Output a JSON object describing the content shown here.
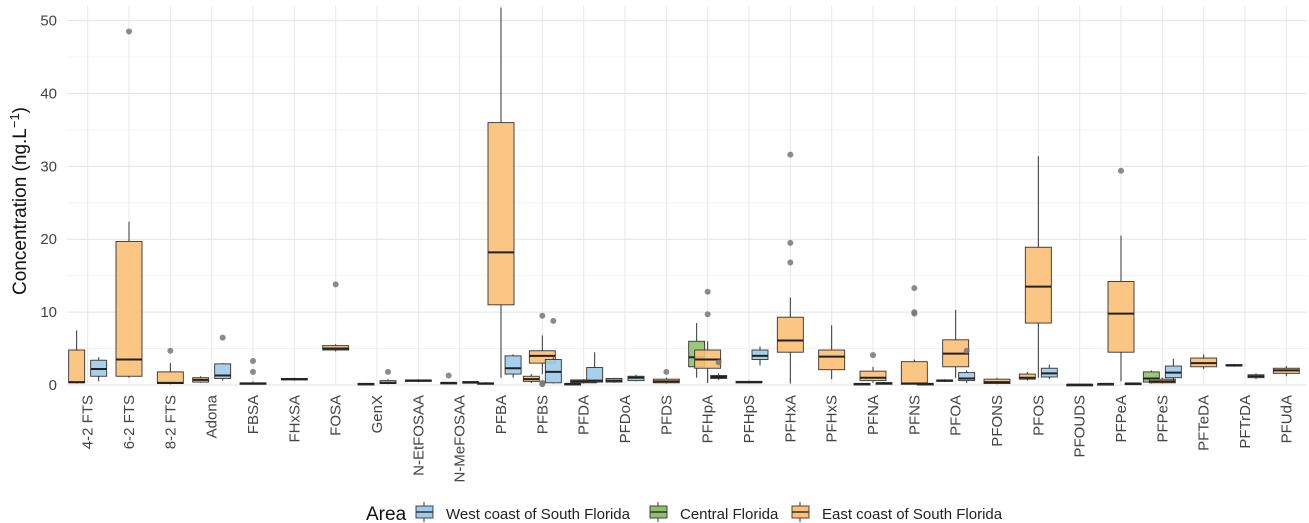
{
  "chart_data": {
    "type": "boxplot",
    "ylabel_main": "Concentration (ng.L",
    "ylabel_sup": "−1",
    "ylabel_close": ")",
    "ylim": [
      0,
      52
    ],
    "yticks": [
      0,
      10,
      20,
      30,
      40,
      50
    ],
    "grid": true,
    "legend_title": "Area",
    "legend_position": "bottom",
    "series": [
      {
        "name": "West coast of South Florida",
        "color": "#9ecae9"
      },
      {
        "name": "Central Florida",
        "color": "#8fc16a"
      },
      {
        "name": "East coast of South Florida",
        "color": "#fbbf75"
      }
    ],
    "categories": [
      "4-2 FTS",
      "6-2 FTS",
      "8-2 FTS",
      "Adona",
      "FBSA",
      "FHxSA",
      "FOSA",
      "GenX",
      "N-EtFOSAA",
      "N-MeFOSAA",
      "PFBA",
      "PFBS",
      "PFDA",
      "PFDoA",
      "PFDS",
      "PFHpA",
      "PFHpS",
      "PFHxA",
      "PFHxS",
      "PFNA",
      "PFNS",
      "PFOA",
      "PFONS",
      "PFOS",
      "PFOUDS",
      "PFPeA",
      "PFPeS",
      "PFTeDA",
      "PFTrDA",
      "PFUdA"
    ],
    "boxes": [
      {
        "cat": 0,
        "series": 2,
        "slot": -1,
        "min": 0.2,
        "q1": 0.3,
        "med": 0.4,
        "q3": 4.8,
        "max": 7.5,
        "out": []
      },
      {
        "cat": 0,
        "series": 0,
        "slot": 1,
        "min": 0.5,
        "q1": 1.2,
        "med": 2.2,
        "q3": 3.4,
        "max": 3.8,
        "out": []
      },
      {
        "cat": 1,
        "series": 2,
        "slot": 0,
        "min": 1.0,
        "q1": 1.2,
        "med": 3.5,
        "q3": 19.7,
        "max": 22.4,
        "out": [
          48.5
        ]
      },
      {
        "cat": 2,
        "series": 2,
        "slot": 0,
        "min": 0.1,
        "q1": 0.2,
        "med": 0.3,
        "q3": 1.8,
        "max": 3.0,
        "out": [
          4.7
        ]
      },
      {
        "cat": 3,
        "series": 2,
        "slot": -1,
        "min": 0.3,
        "q1": 0.4,
        "med": 0.7,
        "q3": 1.0,
        "max": 1.2,
        "out": []
      },
      {
        "cat": 3,
        "series": 0,
        "slot": 1,
        "min": 0.6,
        "q1": 0.9,
        "med": 1.3,
        "q3": 2.9,
        "max": 3.0,
        "out": [
          6.5
        ]
      },
      {
        "cat": 4,
        "series": 2,
        "slot": 0,
        "min": 0.05,
        "q1": 0.1,
        "med": 0.2,
        "q3": 0.3,
        "max": 0.5,
        "out": [
          1.8,
          3.3
        ]
      },
      {
        "cat": 5,
        "series": 2,
        "slot": 0,
        "min": 0.6,
        "q1": 0.7,
        "med": 0.8,
        "q3": 0.9,
        "max": 1.0,
        "out": []
      },
      {
        "cat": 6,
        "series": 2,
        "slot": 0,
        "min": 4.6,
        "q1": 4.8,
        "med": 5.0,
        "q3": 5.4,
        "max": 5.6,
        "out": [
          13.8
        ]
      },
      {
        "cat": 7,
        "series": 2,
        "slot": -1,
        "min": 0.05,
        "q1": 0.1,
        "med": 0.15,
        "q3": 0.2,
        "max": 0.3,
        "out": []
      },
      {
        "cat": 7,
        "series": 0,
        "slot": 1,
        "min": 0.1,
        "q1": 0.2,
        "med": 0.3,
        "q3": 0.6,
        "max": 0.8,
        "out": [
          1.8
        ]
      },
      {
        "cat": 8,
        "series": 2,
        "slot": 0,
        "min": 0.4,
        "q1": 0.5,
        "med": 0.6,
        "q3": 0.7,
        "max": 0.8,
        "out": []
      },
      {
        "cat": 9,
        "series": 2,
        "slot": -1,
        "min": 0.2,
        "q1": 0.25,
        "med": 0.3,
        "q3": 0.35,
        "max": 0.4,
        "out": [
          1.3
        ]
      },
      {
        "cat": 9,
        "series": 0,
        "slot": 1,
        "min": 0.3,
        "q1": 0.35,
        "med": 0.4,
        "q3": 0.45,
        "max": 0.5,
        "out": []
      },
      {
        "cat": 10,
        "series": 2,
        "slot": -1.4,
        "min": 0.1,
        "q1": 0.15,
        "med": 0.2,
        "q3": 0.3,
        "max": 0.4,
        "out": []
      },
      {
        "cat": 10,
        "series": 2,
        "slot": 0,
        "min": 1.0,
        "q1": 11.0,
        "med": 18.2,
        "q3": 36.0,
        "max": 51.8,
        "out": []
      },
      {
        "cat": 10,
        "series": 0,
        "slot": 1.1,
        "min": 1.0,
        "q1": 1.5,
        "med": 2.3,
        "q3": 4.0,
        "max": 4.2,
        "out": []
      },
      {
        "cat": 11,
        "series": 2,
        "slot": -1,
        "min": 0.3,
        "q1": 0.5,
        "med": 0.8,
        "q3": 1.2,
        "max": 1.5,
        "out": []
      },
      {
        "cat": 11,
        "series": 2,
        "slot": 0,
        "min": 1.5,
        "q1": 3.0,
        "med": 4.0,
        "q3": 4.7,
        "max": 6.8,
        "out": [
          9.5,
          0.3,
          0.1
        ]
      },
      {
        "cat": 11,
        "series": 0,
        "slot": 1,
        "min": 0.2,
        "q1": 0.3,
        "med": 1.8,
        "q3": 3.5,
        "max": 3.8,
        "out": [
          8.8
        ]
      },
      {
        "cat": 12,
        "series": 2,
        "slot": -1,
        "min": 0.05,
        "q1": 0.1,
        "med": 0.15,
        "q3": 0.2,
        "max": 0.3,
        "out": []
      },
      {
        "cat": 12,
        "series": 2,
        "slot": 0,
        "min": 0.2,
        "q1": 0.3,
        "med": 0.5,
        "q3": 0.7,
        "max": 0.8,
        "out": []
      },
      {
        "cat": 12,
        "series": 0,
        "slot": 1,
        "min": 0.3,
        "q1": 0.4,
        "med": 0.6,
        "q3": 2.4,
        "max": 4.5,
        "out": []
      },
      {
        "cat": 13,
        "series": 2,
        "slot": -1,
        "min": 0.3,
        "q1": 0.4,
        "med": 0.6,
        "q3": 0.9,
        "max": 1.0,
        "out": []
      },
      {
        "cat": 13,
        "series": 0,
        "slot": 1,
        "min": 0.5,
        "q1": 0.6,
        "med": 1.0,
        "q3": 1.2,
        "max": 1.4,
        "out": []
      },
      {
        "cat": 14,
        "series": 2,
        "slot": 0,
        "min": 0.2,
        "q1": 0.3,
        "med": 0.5,
        "q3": 0.8,
        "max": 1.0,
        "out": [
          1.8
        ]
      },
      {
        "cat": 15,
        "series": 1,
        "slot": -1,
        "min": 1.0,
        "q1": 2.5,
        "med": 3.8,
        "q3": 6.0,
        "max": 8.5,
        "out": []
      },
      {
        "cat": 15,
        "series": 2,
        "slot": 0,
        "min": 0.3,
        "q1": 2.3,
        "med": 3.5,
        "q3": 4.8,
        "max": 6.0,
        "out": [
          12.8,
          9.7
        ]
      },
      {
        "cat": 15,
        "series": 0,
        "slot": 1,
        "min": 0.7,
        "q1": 0.9,
        "med": 1.1,
        "q3": 1.3,
        "max": 1.6,
        "out": [
          3.1
        ]
      },
      {
        "cat": 16,
        "series": 2,
        "slot": 0,
        "min": 0.2,
        "q1": 0.3,
        "med": 0.4,
        "q3": 0.5,
        "max": 0.6,
        "out": []
      },
      {
        "cat": 16,
        "series": 0,
        "slot": 1,
        "min": 2.7,
        "q1": 3.5,
        "med": 4.0,
        "q3": 4.8,
        "max": 5.3,
        "out": []
      },
      {
        "cat": 17,
        "series": 2,
        "slot": 0,
        "min": 0.2,
        "q1": 4.5,
        "med": 6.1,
        "q3": 9.3,
        "max": 12.0,
        "out": [
          31.6,
          19.5,
          16.8
        ]
      },
      {
        "cat": 18,
        "series": 2,
        "slot": 0,
        "min": 0.8,
        "q1": 2.1,
        "med": 3.9,
        "q3": 4.8,
        "max": 8.2,
        "out": []
      },
      {
        "cat": 19,
        "series": 2,
        "slot": -1,
        "min": 0.05,
        "q1": 0.1,
        "med": 0.15,
        "q3": 0.2,
        "max": 0.3,
        "out": []
      },
      {
        "cat": 19,
        "series": 2,
        "slot": 0,
        "min": 0.3,
        "q1": 0.6,
        "med": 1.0,
        "q3": 1.9,
        "max": 2.5,
        "out": [
          4.1
        ]
      },
      {
        "cat": 19,
        "series": 0,
        "slot": 1,
        "min": 0.1,
        "q1": 0.2,
        "med": 0.25,
        "q3": 0.3,
        "max": 0.4,
        "out": []
      },
      {
        "cat": 20,
        "series": 2,
        "slot": 0,
        "min": 0.05,
        "q1": 0.1,
        "med": 0.2,
        "q3": 3.2,
        "max": 3.5,
        "out": [
          13.3,
          9.8,
          10.0
        ]
      },
      {
        "cat": 20,
        "series": 0,
        "slot": 1,
        "min": 0.05,
        "q1": 0.1,
        "med": 0.15,
        "q3": 0.2,
        "max": 0.3,
        "out": []
      },
      {
        "cat": 21,
        "series": 2,
        "slot": -1,
        "min": 0.4,
        "q1": 0.5,
        "med": 0.6,
        "q3": 0.7,
        "max": 0.8,
        "out": []
      },
      {
        "cat": 21,
        "series": 2,
        "slot": 0,
        "min": 1.0,
        "q1": 2.5,
        "med": 4.3,
        "q3": 6.2,
        "max": 10.3,
        "out": []
      },
      {
        "cat": 21,
        "series": 0,
        "slot": 1,
        "min": 0.3,
        "q1": 0.6,
        "med": 0.9,
        "q3": 1.7,
        "max": 2.0,
        "out": [
          4.7
        ]
      },
      {
        "cat": 22,
        "series": 2,
        "slot": 0,
        "min": 0.1,
        "q1": 0.2,
        "med": 0.4,
        "q3": 0.8,
        "max": 1.0,
        "out": []
      },
      {
        "cat": 23,
        "series": 2,
        "slot": -1,
        "min": 0.6,
        "q1": 0.8,
        "med": 1.0,
        "q3": 1.5,
        "max": 1.8,
        "out": []
      },
      {
        "cat": 23,
        "series": 2,
        "slot": 0,
        "min": 1.0,
        "q1": 8.5,
        "med": 13.5,
        "q3": 18.9,
        "max": 31.4,
        "out": []
      },
      {
        "cat": 23,
        "series": 0,
        "slot": 1,
        "min": 0.8,
        "q1": 1.1,
        "med": 1.6,
        "q3": 2.3,
        "max": 2.8,
        "out": []
      },
      {
        "cat": 24,
        "series": 2,
        "slot": 0,
        "min": 0.0,
        "q1": 0.02,
        "med": 0.05,
        "q3": 0.08,
        "max": 0.1,
        "out": []
      },
      {
        "cat": 25,
        "series": 2,
        "slot": -1.4,
        "min": 0.1,
        "q1": 0.12,
        "med": 0.15,
        "q3": 0.18,
        "max": 0.2,
        "out": []
      },
      {
        "cat": 25,
        "series": 2,
        "slot": 0,
        "min": 0.5,
        "q1": 4.5,
        "med": 9.8,
        "q3": 14.2,
        "max": 20.5,
        "out": [
          29.4
        ]
      },
      {
        "cat": 25,
        "series": 0,
        "slot": 1.1,
        "min": 0.1,
        "q1": 0.15,
        "med": 0.2,
        "q3": 0.25,
        "max": 0.3,
        "out": []
      },
      {
        "cat": 26,
        "series": 1,
        "slot": -1,
        "min": 0.2,
        "q1": 0.4,
        "med": 0.9,
        "q3": 1.8,
        "max": 2.0,
        "out": []
      },
      {
        "cat": 26,
        "series": 2,
        "slot": 0,
        "min": 0.2,
        "q1": 0.3,
        "med": 0.5,
        "q3": 0.8,
        "max": 1.0,
        "out": []
      },
      {
        "cat": 26,
        "series": 0,
        "slot": 1,
        "min": 0.6,
        "q1": 1.0,
        "med": 1.7,
        "q3": 2.6,
        "max": 3.6,
        "out": []
      },
      {
        "cat": 27,
        "series": 2,
        "slot": 0,
        "min": 2.2,
        "q1": 2.5,
        "med": 3.0,
        "q3": 3.7,
        "max": 4.2,
        "out": []
      },
      {
        "cat": 28,
        "series": 2,
        "slot": -1,
        "min": 2.5,
        "q1": 2.6,
        "med": 2.7,
        "q3": 2.8,
        "max": 2.9,
        "out": []
      },
      {
        "cat": 28,
        "series": 2,
        "slot": 1,
        "min": 0.8,
        "q1": 1.0,
        "med": 1.2,
        "q3": 1.4,
        "max": 1.6,
        "out": []
      },
      {
        "cat": 29,
        "series": 2,
        "slot": 0,
        "min": 1.2,
        "q1": 1.6,
        "med": 2.0,
        "q3": 2.3,
        "max": 2.6,
        "out": []
      }
    ]
  }
}
